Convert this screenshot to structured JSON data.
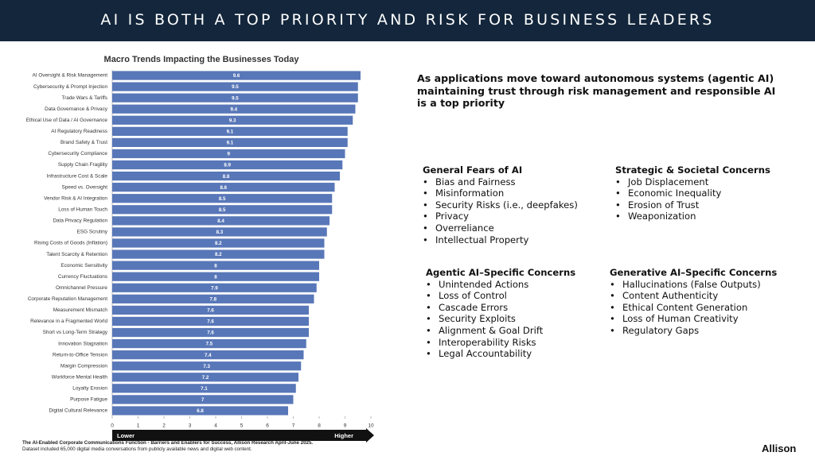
{
  "header": {
    "title": "AI IS BOTH A TOP PRIORITY AND RISK FOR BUSINESS LEADERS"
  },
  "chart_data": {
    "type": "bar",
    "orientation": "horizontal",
    "title": "Macro Trends Impacting the Businesses Today",
    "categories": [
      "AI Oversight & Risk Management",
      "Cybersecurity & Prompt Injection",
      "Trade Wars & Tariffs",
      "Data Governance & Privacy",
      "Ethical Use of Data / AI Governance",
      "AI Regulatory Readiness",
      "Brand Safety & Trust",
      "Cybersecurity Compliance",
      "Supply Chain Fragility",
      "Infrastructure Cost & Scale",
      "Speed vs. Oversight",
      "Vendor Risk & AI Integration",
      "Loss of Human Touch",
      "Data Privacy Regulation",
      "ESG Scrutiny",
      "Rising Costs of Goods (Inflation)",
      "Talent Scarcity & Retention",
      "Economic Sensitivity",
      "Currency Fluctuations",
      "Omnichannel Pressure",
      "Corporate Reputation Management",
      "Measurement Mismatch",
      "Relevance in a Fragmented World",
      "Short vs Long-Term Strategy",
      "Innovation Stagnation",
      "Return-to-Office Tension",
      "Margin Compression",
      "Workforce Mental Health",
      "Loyalty Erosion",
      "Purpose Fatigue",
      "Digital Cultural Relevance"
    ],
    "values": [
      9.6,
      9.5,
      9.5,
      9.4,
      9.3,
      9.1,
      9.1,
      9,
      8.9,
      8.8,
      8.6,
      8.5,
      8.5,
      8.4,
      8.3,
      8.2,
      8.2,
      8,
      8,
      7.9,
      7.8,
      7.6,
      7.6,
      7.6,
      7.5,
      7.4,
      7.3,
      7.2,
      7.1,
      7,
      6.8
    ],
    "color": "#5877b8",
    "xlim": [
      0,
      10
    ],
    "xticks": [
      0,
      1,
      2,
      3,
      4,
      5,
      6,
      7,
      8,
      9,
      10
    ],
    "scale_labels": [
      "Lower",
      "Higher"
    ]
  },
  "intro": "As applications move toward autonomous systems (agentic AI) maintaining trust through risk management and responsible AI is a top priority",
  "sections": [
    {
      "heading": "General Fears of AI",
      "items": [
        "Bias and Fairness",
        "Misinformation",
        "Security Risks (i.e., deepfakes)",
        "Privacy",
        "Overreliance",
        "Intellectual Property"
      ]
    },
    {
      "heading": "Strategic & Societal Concerns",
      "items": [
        "Job Displacement",
        "Economic Inequality",
        "Erosion of Trust",
        "Weaponization"
      ]
    },
    {
      "heading": "Agentic AI–Specific Concerns",
      "items": [
        "Unintended Actions",
        "Loss of Control",
        "Cascade Errors",
        "Security Exploits",
        "Alignment & Goal Drift",
        "Interoperability Risks",
        "Legal Accountability"
      ]
    },
    {
      "heading": "Generative AI–Specific Concerns",
      "items": [
        "Hallucinations (False Outputs)",
        "Content Authenticity",
        "Ethical Content Generation",
        "Loss of Human Creativity",
        "Regulatory Gaps"
      ]
    }
  ],
  "footer": {
    "note": "The AI-Enabled Corporate Communications Function - Barriers and Enablers for Success, Allison Research April-June 2025.",
    "dataset": "Dataset included 65,000 digital media conversations from publicly available news and digital web content."
  },
  "brand": "Allison"
}
